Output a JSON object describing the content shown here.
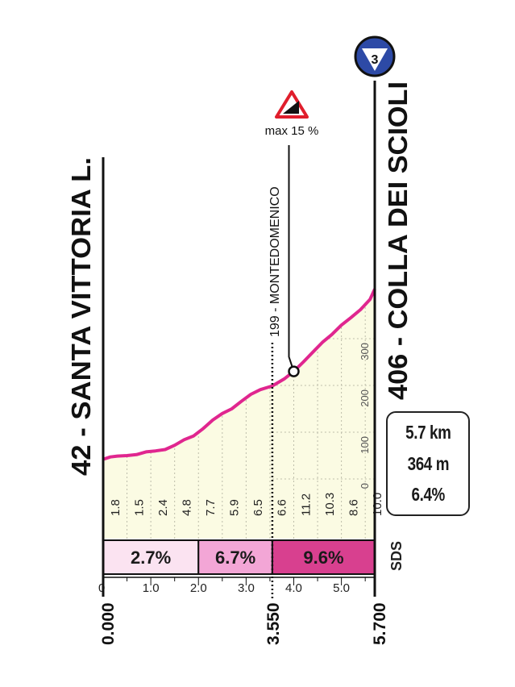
{
  "chart_data": {
    "type": "area",
    "start": {
      "name": "42 - SANTA VITTORIA L.",
      "distance_label": "0.000"
    },
    "finish": {
      "name": "406 - COLLA DEI SCIOLI",
      "distance_label": "5.700",
      "category": "3"
    },
    "intermediate": {
      "name": "199 - MONTEDOMENICO",
      "distance_label": "3.550",
      "km": 3.55
    },
    "max_gradient": {
      "label": "max 15 %",
      "km": 4.0
    },
    "profile": {
      "x": [
        0,
        0.15,
        0.3,
        0.5,
        0.7,
        0.9,
        1.1,
        1.3,
        1.5,
        1.7,
        1.9,
        2.1,
        2.3,
        2.5,
        2.7,
        2.9,
        3.1,
        3.3,
        3.55,
        3.8,
        4.0,
        4.2,
        4.4,
        4.6,
        4.8,
        5.0,
        5.2,
        5.4,
        5.6,
        5.7
      ],
      "y": [
        42,
        47,
        49,
        50,
        52,
        58,
        60,
        63,
        72,
        84,
        92,
        108,
        126,
        140,
        150,
        166,
        181,
        191,
        199,
        214,
        230,
        250,
        271,
        292,
        309,
        329,
        345,
        362,
        384,
        406
      ]
    },
    "y_ticks": [
      0,
      100,
      200,
      300
    ],
    "x_ticks": [
      "0",
      "1.0",
      "2.0",
      "3.0",
      "4.0",
      "5.0"
    ],
    "half_km_gradients": [
      "1.8",
      "1.5",
      "2.4",
      "4.8",
      "7.7",
      "5.9",
      "6.5",
      "6.6",
      "11.2",
      "10.3",
      "8.6",
      "10.0"
    ],
    "sections": [
      {
        "label": "2.7%",
        "from": 0,
        "to": 2.0,
        "color": "#fbe3f1"
      },
      {
        "label": "6.7%",
        "from": 2.0,
        "to": 3.55,
        "color": "#f3a6d6"
      },
      {
        "label": "9.6%",
        "from": 3.55,
        "to": 5.7,
        "color": "#d8408f"
      }
    ],
    "colors": {
      "line": "#e0268f",
      "fill": "#fbfbe3",
      "grid": "#bdbdaa"
    }
  },
  "stats": {
    "distance": "5.7 km",
    "elevation_gain": "364 m",
    "avg_gradient": "6.4%"
  },
  "brand": "SDS"
}
